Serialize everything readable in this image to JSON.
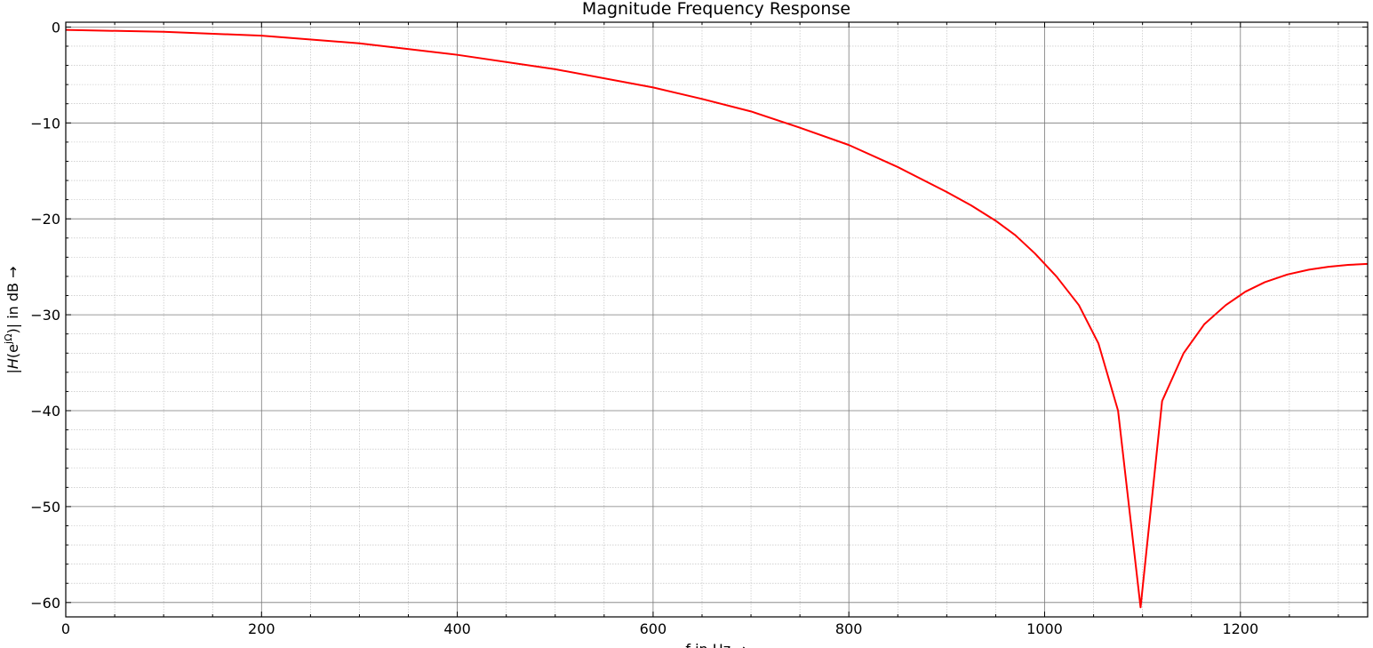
{
  "chart_data": {
    "type": "line",
    "title": "Magnitude Frequency Response",
    "xlabel": "f in Hz →",
    "ylabel": "|H(e^jΩ)| in dB →",
    "ylabel_parts": {
      "left": "|",
      "H": "H",
      "paren_open": "(e",
      "superscript": "jΩ",
      "rest": ")| in dB →"
    },
    "xlim": [
      0,
      1330
    ],
    "ylim": [
      -61.5,
      0.5
    ],
    "x_major_ticks": [
      0,
      200,
      400,
      600,
      800,
      1000,
      1200
    ],
    "x_tick_labels": [
      "0",
      "200",
      "400",
      "600",
      "800",
      "1000",
      "1200"
    ],
    "x_minor_step": 50,
    "y_major_ticks": [
      0,
      -10,
      -20,
      -30,
      -40,
      -50,
      -60
    ],
    "y_tick_labels": [
      "0",
      "−10",
      "−20",
      "−30",
      "−40",
      "−50",
      "−60"
    ],
    "y_minor_step": 2,
    "grid": true,
    "series": [
      {
        "color": "#ff0000",
        "x": [
          0,
          100,
          200,
          300,
          400,
          500,
          600,
          650,
          700,
          750,
          800,
          850,
          900,
          925,
          950,
          970,
          990,
          1012,
          1035,
          1055,
          1075,
          1098,
          1120,
          1142,
          1163,
          1185,
          1205,
          1225,
          1248,
          1270,
          1290,
          1310,
          1330
        ],
        "y": [
          -0.3,
          -0.5,
          -0.9,
          -1.7,
          -2.9,
          -4.4,
          -6.3,
          -7.5,
          -8.8,
          -10.5,
          -12.3,
          -14.6,
          -17.2,
          -18.6,
          -20.2,
          -21.7,
          -23.6,
          -26.0,
          -29.0,
          -33.0,
          -40.0,
          -60.5,
          -39.0,
          -34.0,
          -31.0,
          -29.0,
          -27.6,
          -26.6,
          -25.8,
          -25.3,
          -25.0,
          -24.8,
          -24.7
        ]
      }
    ]
  }
}
